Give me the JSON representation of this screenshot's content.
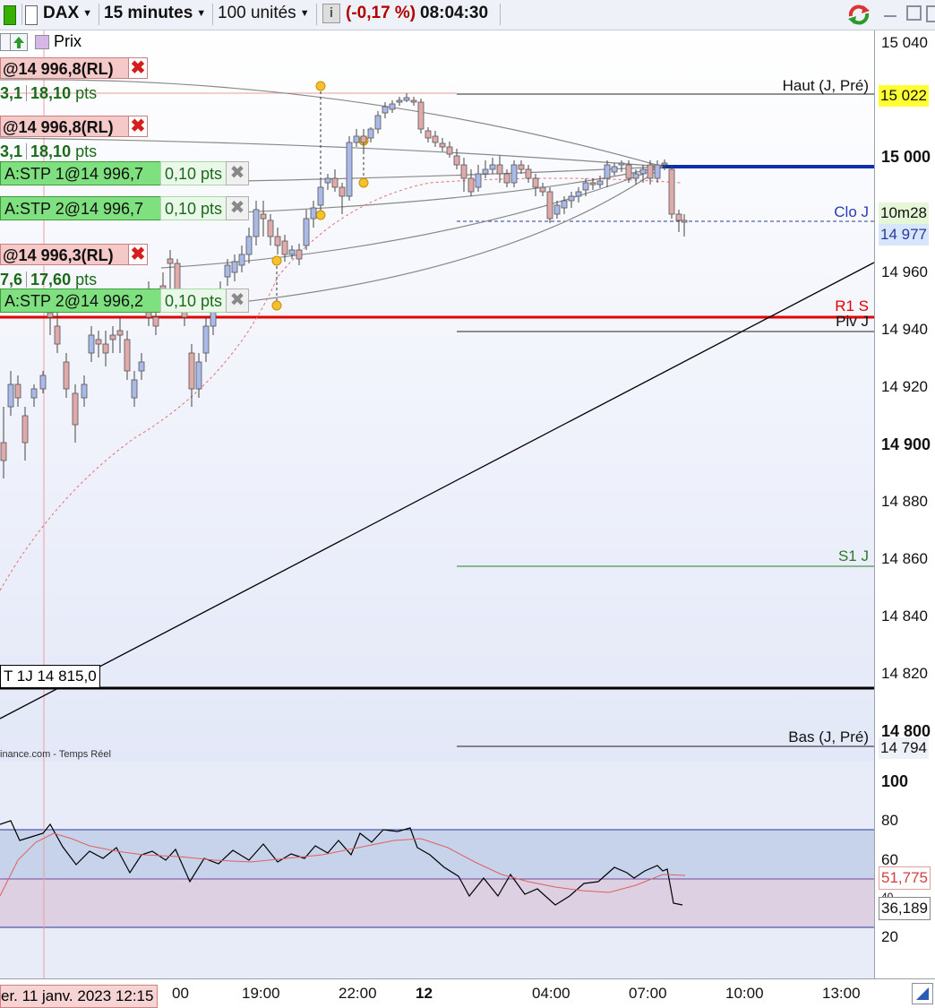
{
  "toolbar": {
    "instrument": "DAX",
    "timeframe": "15 minutes",
    "units": "100 unités",
    "info_icon": "i",
    "change": "(-0,17 %)",
    "time": "08:04:30"
  },
  "toolbar2": {
    "price_label": "Prix"
  },
  "orders": [
    {
      "label": "@14 996,8(RL)",
      "pts_a": "3,1",
      "pts_b": "18,10",
      "pts_unit": "pts"
    },
    {
      "label": "@14 996,8(RL)",
      "pts_a": "3,1",
      "pts_b": "18,10",
      "pts_unit": "pts"
    },
    {
      "label": "@14 996,3(RL)",
      "pts_a": "7,6",
      "pts_b": "17,60",
      "pts_unit": "pts"
    }
  ],
  "stops": [
    {
      "label": "A:STP 1@14 996,7",
      "pts": "0,10 pts"
    },
    {
      "label": "A:STP 2@14 996,7",
      "pts": "0,10 pts"
    },
    {
      "label": "A:STP 2@14 996,2",
      "pts": "0,10 pts"
    }
  ],
  "levels": {
    "haut": "Haut (J, Pré)",
    "clo": "Clo J",
    "r1": "R1 S",
    "piv": "Piv J",
    "s1": "S1 J",
    "bas": "Bas (J, Pré)",
    "support_tag": "T 1J 14 815,0"
  },
  "price_axis": {
    "labels": [
      "15 040",
      "15 000",
      "14 960",
      "14 940",
      "14 920",
      "14 900",
      "14 880",
      "14 860",
      "14 840",
      "14 820",
      "14 800"
    ],
    "tag_haut": "15 022",
    "tag_countdown": "10m28",
    "tag_close": "14 977",
    "tag_bas": "14 794"
  },
  "osc_axis": {
    "labels": [
      "100",
      "80",
      "60",
      "20"
    ],
    "tag_signal": "51,775",
    "tag_value": "36,189",
    "partial_label": "40"
  },
  "source": "inance.com - Temps Réel",
  "time_axis": {
    "cursor_date": "er. 11 janv. 2023 12:15",
    "labels": [
      "00",
      "19:00",
      "22:00",
      "12",
      "04:00",
      "07:00",
      "10:00",
      "13:00"
    ]
  },
  "colors": {
    "bull_candle": "#a9b9e8",
    "bear_candle": "#e0aaaa",
    "resistance": "#e00000",
    "close_line": "#0f2fa8",
    "support": "#000000",
    "s1": "#2a7a2a"
  }
}
